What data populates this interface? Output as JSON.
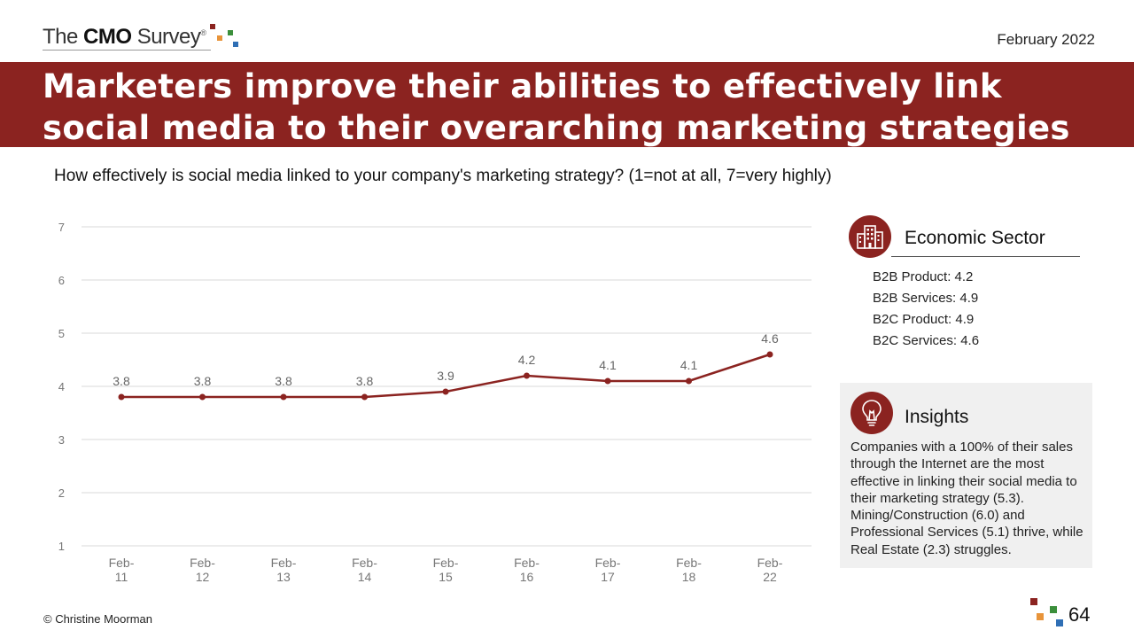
{
  "header": {
    "logo": {
      "the": "The ",
      "cmo": "CMO",
      "survey": " Survey",
      "reg": "®"
    },
    "date": "February 2022",
    "title": "Marketers improve their abilities to effectively link social media to their overarching marketing strategies"
  },
  "question": "How effectively is social media linked to your company's marketing strategy? (1=not at all, 7=very highly)",
  "chart_data": {
    "type": "line",
    "categories": [
      "Feb-11",
      "Feb-12",
      "Feb-13",
      "Feb-14",
      "Feb-15",
      "Feb-16",
      "Feb-17",
      "Feb-18",
      "Feb-22"
    ],
    "category_lines": [
      [
        "Feb-",
        "11"
      ],
      [
        "Feb-",
        "12"
      ],
      [
        "Feb-",
        "13"
      ],
      [
        "Feb-",
        "14"
      ],
      [
        "Feb-",
        "15"
      ],
      [
        "Feb-",
        "16"
      ],
      [
        "Feb-",
        "17"
      ],
      [
        "Feb-",
        "18"
      ],
      [
        "Feb-",
        "22"
      ]
    ],
    "series": [
      {
        "values": [
          3.8,
          3.8,
          3.8,
          3.8,
          3.9,
          4.2,
          4.1,
          4.1,
          4.6
        ],
        "color": "#8b2320"
      }
    ],
    "data_labels": [
      "3.8",
      "3.8",
      "3.8",
      "3.8",
      "3.9",
      "4.2",
      "4.1",
      "4.1",
      "4.6"
    ],
    "ylim": [
      1,
      7
    ],
    "yticks": [
      1,
      2,
      3,
      4,
      5,
      6,
      7
    ],
    "grid": true,
    "title": "",
    "xlabel": "",
    "ylabel": ""
  },
  "sector_panel": {
    "icon": "office-building-icon",
    "title": "Economic Sector",
    "items": [
      "B2B Product: 4.2",
      "B2B Services: 4.9",
      "B2C Product: 4.9",
      "B2C Services: 4.6"
    ]
  },
  "insights_panel": {
    "icon": "lightbulb-icon",
    "title": "Insights",
    "body": "Companies with a 100% of their sales through the Internet are the most effective in linking their social media to their marketing strategy (5.3). Mining/Construction (6.0) and Professional Services (5.1) thrive, while Real Estate (2.3) struggles."
  },
  "footer": {
    "copyright": "© Christine Moorman",
    "page_number": "64"
  },
  "colors": {
    "brand_red": "#8b2320",
    "logo_squares": [
      "#8b2320",
      "#e8943a",
      "#3b8f3b",
      "#2f6fb5"
    ]
  }
}
